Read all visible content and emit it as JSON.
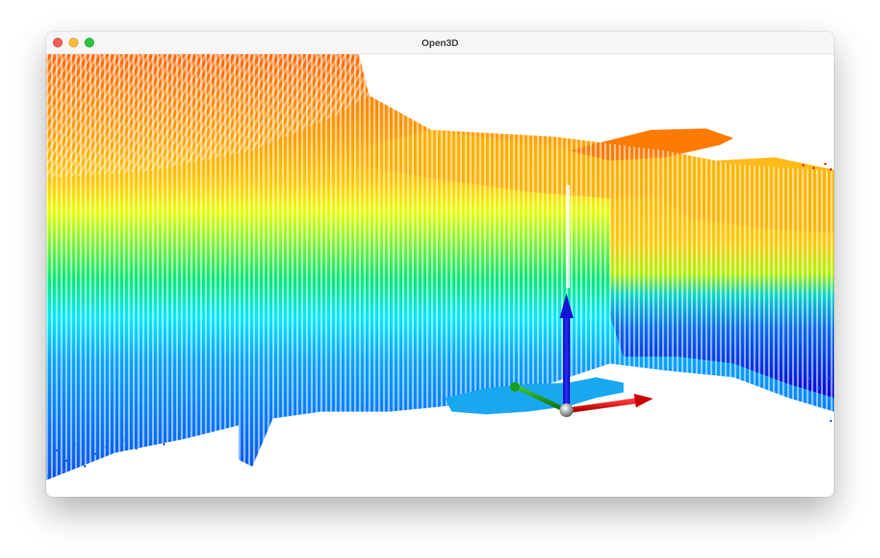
{
  "window": {
    "title": "Open3D"
  },
  "viewer": {
    "background": "#ffffff",
    "colormap": [
      "#0000d8",
      "#0078ff",
      "#00e6ff",
      "#00e678",
      "#e6ff00",
      "#ffb400",
      "#ff6400",
      "#dc1400"
    ],
    "axes": {
      "x_color": "#e00000",
      "y_color": "#0c9a0c",
      "z_color": "#1414d0",
      "origin_color": "#b0b0b0"
    }
  },
  "icons": {
    "close": "close-icon",
    "minimize": "minimize-icon",
    "zoom": "zoom-icon"
  }
}
